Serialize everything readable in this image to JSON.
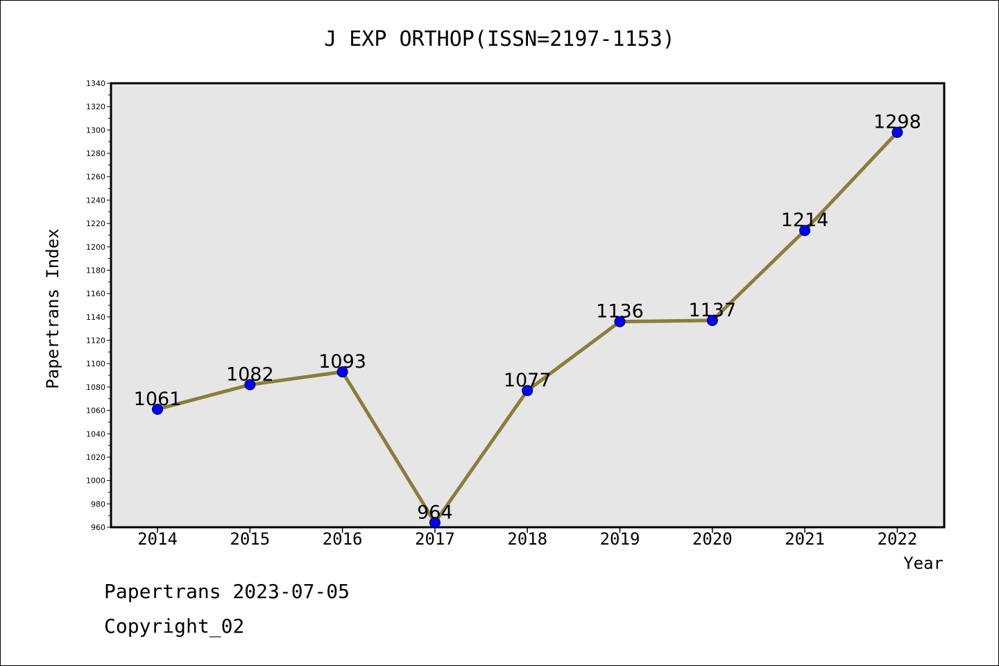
{
  "chart_data": {
    "type": "line",
    "title": "J EXP ORTHOP(ISSN=2197-1153)",
    "xlabel": "Year",
    "ylabel": "Papertrans Index",
    "x": [
      "2014",
      "2015",
      "2016",
      "2017",
      "2018",
      "2019",
      "2020",
      "2021",
      "2022"
    ],
    "series": [
      {
        "values": [
          1061,
          1082,
          1093,
          964,
          1077,
          1136,
          1137,
          1214,
          1298
        ]
      }
    ],
    "data_labels": [
      "1061",
      "1082",
      "1093",
      "964",
      "1077",
      "1136",
      "1137",
      "1214",
      "1298"
    ],
    "ylim": [
      960,
      1340
    ],
    "yticks": [
      "960",
      "980",
      "1000",
      "1020",
      "1040",
      "1060",
      "1080",
      "1100",
      "1120",
      "1140",
      "1160",
      "1180",
      "1200",
      "1220",
      "1240",
      "1260",
      "1280",
      "1300",
      "1320",
      "1340"
    ],
    "grid": false,
    "legend": "none",
    "colors": {
      "line": "#8b7d3a",
      "marker": "#0000ff",
      "plot_bg": "#e6e6e6"
    }
  },
  "footer": {
    "date_line": "Papertrans 2023-07-05",
    "copyright": "Copyright_02"
  }
}
